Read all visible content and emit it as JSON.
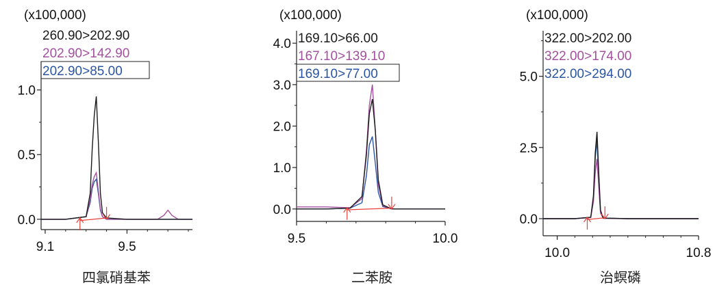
{
  "chart_data": [
    {
      "type": "line",
      "title": "四氯硝基苯",
      "scale_label": "(x100,000)",
      "xlim": [
        9.08,
        9.82
      ],
      "ylim": [
        -0.08,
        1.22
      ],
      "x_ticks": [
        9.1,
        9.5
      ],
      "x_tick_labels": [
        "9.1",
        "9.5"
      ],
      "y_ticks": [
        0.0,
        0.5,
        1.0
      ],
      "y_tick_labels": [
        "0.0",
        "0.5",
        "1.0"
      ],
      "series": [
        {
          "name": "260.90>202.90",
          "color": "#1a1a1a",
          "x": [
            9.08,
            9.2,
            9.3,
            9.32,
            9.33,
            9.34,
            9.35,
            9.36,
            9.37,
            9.38,
            9.4,
            9.5,
            9.65,
            9.68,
            9.7,
            9.72,
            9.75,
            9.82
          ],
          "y": [
            0.0,
            0.0,
            0.02,
            0.2,
            0.55,
            0.8,
            0.95,
            0.6,
            0.2,
            0.05,
            0.01,
            0.0,
            0.0,
            0.0,
            0.0,
            0.0,
            0.0,
            0.0
          ]
        },
        {
          "name": "202.90>142.90",
          "color": "#a3509f",
          "x": [
            9.08,
            9.2,
            9.3,
            9.32,
            9.33,
            9.34,
            9.35,
            9.36,
            9.37,
            9.38,
            9.4,
            9.5,
            9.65,
            9.68,
            9.7,
            9.72,
            9.75,
            9.82
          ],
          "y": [
            0.0,
            0.0,
            0.02,
            0.15,
            0.27,
            0.33,
            0.36,
            0.22,
            0.08,
            0.02,
            0.0,
            0.0,
            0.0,
            0.03,
            0.07,
            0.03,
            0.0,
            0.0
          ]
        },
        {
          "name": "202.90>85.00",
          "color": "#2a55a3",
          "x": [
            9.08,
            9.2,
            9.3,
            9.32,
            9.33,
            9.34,
            9.35,
            9.36,
            9.37,
            9.38,
            9.4,
            9.5,
            9.65,
            9.68,
            9.7,
            9.72,
            9.75,
            9.82
          ],
          "y": [
            0.0,
            0.0,
            0.02,
            0.13,
            0.24,
            0.29,
            0.31,
            0.2,
            0.07,
            0.02,
            0.0,
            0.0,
            0.0,
            0.0,
            0.0,
            0.0,
            0.0,
            0.0
          ]
        }
      ],
      "baseline": {
        "x": [
          9.27,
          9.4
        ],
        "y": [
          -0.01,
          0.01
        ]
      },
      "integration_arrows": [
        {
          "x": 9.27,
          "direction": "up"
        },
        {
          "x": 9.4,
          "direction": "down"
        }
      ]
    },
    {
      "type": "line",
      "title": "二苯胺",
      "scale_label": "(x100,000)",
      "xlim": [
        9.5,
        10.0
      ],
      "ylim": [
        -0.3,
        4.3
      ],
      "x_ticks": [
        9.5,
        10.0
      ],
      "x_tick_labels": [
        "9.5",
        "10.0"
      ],
      "y_ticks": [
        0.0,
        1.0,
        2.0,
        3.0,
        4.0
      ],
      "y_tick_labels": [
        "0.0",
        "1.0",
        "2.0",
        "3.0",
        "4.0"
      ],
      "series": [
        {
          "name": "169.10>66.00",
          "color": "#1a1a1a",
          "x": [
            9.5,
            9.6,
            9.68,
            9.72,
            9.735,
            9.745,
            9.755,
            9.765,
            9.775,
            9.79,
            9.82,
            9.9,
            10.0
          ],
          "y": [
            0.0,
            0.0,
            0.02,
            0.3,
            1.3,
            2.3,
            2.65,
            1.9,
            0.7,
            0.1,
            0.0,
            0.0,
            0.0
          ]
        },
        {
          "name": "167.10>139.10",
          "color": "#a3509f",
          "x": [
            9.5,
            9.6,
            9.68,
            9.72,
            9.735,
            9.745,
            9.755,
            9.765,
            9.775,
            9.79,
            9.82,
            9.9,
            10.0
          ],
          "y": [
            0.05,
            0.05,
            0.03,
            0.25,
            1.4,
            2.5,
            3.0,
            1.9,
            0.6,
            0.08,
            0.0,
            0.0,
            0.0
          ]
        },
        {
          "name": "169.10>77.00",
          "color": "#2a55a3",
          "x": [
            9.5,
            9.6,
            9.68,
            9.72,
            9.735,
            9.745,
            9.755,
            9.765,
            9.775,
            9.79,
            9.82,
            9.9,
            10.0
          ],
          "y": [
            0.0,
            0.0,
            0.02,
            0.15,
            0.8,
            1.55,
            1.75,
            1.1,
            0.4,
            0.06,
            0.0,
            0.0,
            0.0
          ]
        }
      ],
      "baseline": {
        "x": [
          9.67,
          9.82
        ],
        "y": [
          -0.02,
          0.02
        ]
      },
      "integration_arrows": [
        {
          "x": 9.67,
          "direction": "up"
        },
        {
          "x": 9.82,
          "direction": "down"
        }
      ]
    },
    {
      "type": "line",
      "title": "治螟磷",
      "scale_label": "(x100,000)",
      "xlim": [
        9.92,
        10.8
      ],
      "ylim": [
        -0.6,
        6.6
      ],
      "x_ticks": [
        10.0,
        10.8
      ],
      "x_tick_labels": [
        "10.0",
        "10.8"
      ],
      "y_ticks": [
        0.0,
        2.5,
        5.0
      ],
      "y_tick_labels": [
        "0.0",
        "2.5",
        "5.0"
      ],
      "series": [
        {
          "name": "322.00>202.00",
          "color": "#1a1a1a",
          "x": [
            9.92,
            10.1,
            10.19,
            10.205,
            10.215,
            10.225,
            10.235,
            10.245,
            10.26,
            10.4,
            10.8
          ],
          "y": [
            0.0,
            0.0,
            0.05,
            0.8,
            2.3,
            3.05,
            1.6,
            0.3,
            0.02,
            0.0,
            0.0
          ]
        },
        {
          "name": "322.00>174.00",
          "color": "#a3509f",
          "x": [
            9.92,
            10.1,
            10.19,
            10.205,
            10.215,
            10.225,
            10.235,
            10.245,
            10.26,
            10.4,
            10.8
          ],
          "y": [
            0.0,
            0.0,
            0.04,
            0.6,
            1.6,
            2.1,
            1.1,
            0.2,
            0.01,
            0.0,
            0.0
          ]
        },
        {
          "name": "322.00>294.00",
          "color": "#2a55a3",
          "x": [
            9.92,
            10.1,
            10.19,
            10.205,
            10.215,
            10.225,
            10.235,
            10.245,
            10.26,
            10.4,
            10.8
          ],
          "y": [
            0.0,
            0.0,
            0.05,
            0.75,
            2.1,
            2.75,
            1.45,
            0.25,
            0.02,
            0.0,
            0.0
          ]
        }
      ],
      "baseline": {
        "x": [
          10.17,
          10.27
        ],
        "y": [
          -0.03,
          0.03
        ]
      },
      "integration_arrows": [
        {
          "x": 10.17,
          "direction": "up"
        },
        {
          "x": 10.27,
          "direction": "down"
        }
      ]
    }
  ]
}
